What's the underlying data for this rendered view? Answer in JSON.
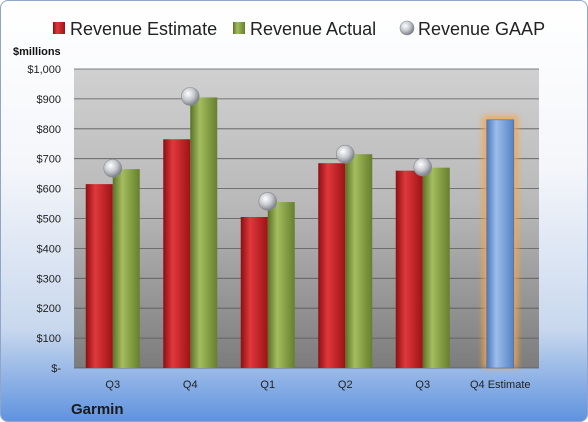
{
  "chart_data": {
    "type": "bar",
    "title": "",
    "ylabel": "$millions",
    "company": "Garmin",
    "categories": [
      "Q3",
      "Q4",
      "Q1",
      "Q2",
      "Q3",
      "Q4 Estimate"
    ],
    "series": [
      {
        "name": "Revenue Estimate",
        "kind": "bar",
        "color": "#c0181c",
        "values": [
          615,
          765,
          505,
          685,
          660,
          null
        ]
      },
      {
        "name": "Revenue Actual",
        "kind": "bar",
        "color": "#7f9a3a",
        "values": [
          665,
          905,
          555,
          715,
          670,
          null
        ]
      },
      {
        "name": "Revenue GAAP",
        "kind": "marker",
        "color": "#b8bcc4",
        "values": [
          668,
          908,
          557,
          715,
          672,
          null
        ]
      },
      {
        "name": "Q4 Estimate",
        "kind": "bar",
        "color": "#6f9ad6",
        "highlight": "#f5a54a",
        "values": [
          null,
          null,
          null,
          null,
          null,
          830
        ]
      }
    ],
    "ylim": [
      0,
      1000
    ],
    "yticks": [
      0,
      100,
      200,
      300,
      400,
      500,
      600,
      700,
      800,
      900,
      1000
    ],
    "ytick_labels": [
      "$-",
      "$100",
      "$200",
      "$300",
      "$400",
      "$500",
      "$600",
      "$700",
      "$800",
      "$900",
      "$1,000"
    ],
    "grid": true,
    "legend_position": "top"
  }
}
